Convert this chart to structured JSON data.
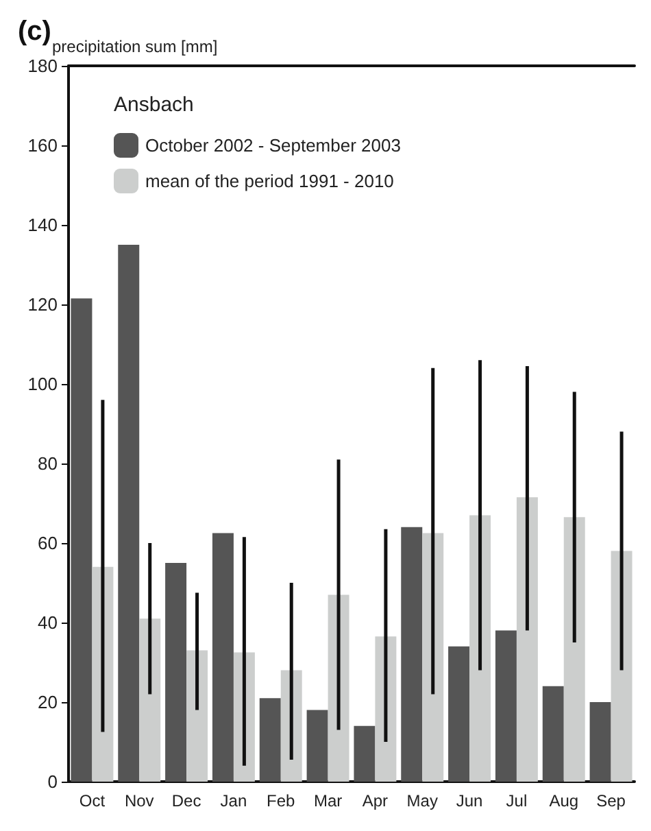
{
  "chart_data": {
    "type": "bar",
    "title": "(c)",
    "ylabel": "precipitation sum [mm]",
    "legend_title": "Ansbach",
    "legend": "top left",
    "grid": false,
    "categories": [
      "Oct",
      "Nov",
      "Dec",
      "Jan",
      "Feb",
      "Mar",
      "Apr",
      "May",
      "Jun",
      "Jul",
      "Aug",
      "Sep"
    ],
    "ylim": [
      0,
      180
    ],
    "yticks": [
      0,
      20,
      40,
      60,
      80,
      100,
      120,
      140,
      160,
      180
    ],
    "series": [
      {
        "name": "October 2002 - September 2003",
        "color": "#555555",
        "values": [
          121.5,
          135,
          55,
          62.5,
          21,
          18,
          14,
          64,
          34,
          38,
          24,
          20
        ]
      },
      {
        "name": "mean of the period 1991 - 2010",
        "color": "#cccecd",
        "values": [
          54,
          41,
          33,
          32.5,
          28,
          47,
          36.5,
          62.5,
          67,
          71.5,
          66.5,
          58
        ],
        "errors": [
          [
            12.5,
            96
          ],
          [
            22,
            60
          ],
          [
            18,
            47.5
          ],
          [
            4,
            61.5
          ],
          [
            5.5,
            50
          ],
          [
            13,
            81
          ],
          [
            10,
            63.5
          ],
          [
            22,
            104
          ],
          [
            28,
            106
          ],
          [
            38,
            104.5
          ],
          [
            35,
            98
          ],
          [
            28,
            88
          ]
        ]
      }
    ]
  }
}
